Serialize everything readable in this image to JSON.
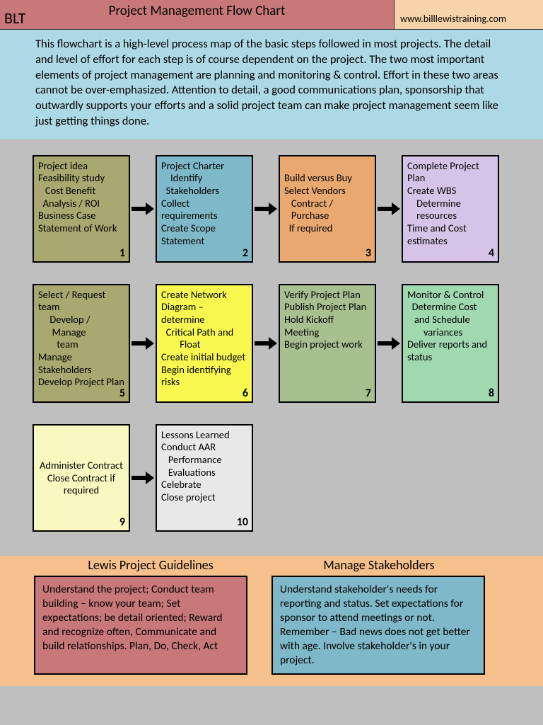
{
  "header": {
    "title": "Project Management Flow Chart",
    "brand": "BLT",
    "url": "www.billlewistraining.com",
    "title_bg": "#c87878",
    "url_bg": "#f8d2a8"
  },
  "intro": {
    "text": "This flowchart is a high-level process map of the basic steps followed in most projects. The detail and level of effort for each step is of course dependent on the project.  The two most important elements of project management are planning and monitoring & control.  Effort in these two areas cannot be over-emphasized.  Attention to detail, a good communications plan, sponsorship that outwardly supports your efforts and a solid project team can make project management seem like just getting things done.",
    "bg": "#add8e6"
  },
  "page_bg": "#bfbfbf",
  "boxes": [
    {
      "n": 1,
      "bg": "#a8a870",
      "text": "Project idea\nFeasibility study\n   Cost Benefit\n  Analysis / ROI\nBusiness Case\nStatement of Work"
    },
    {
      "n": 2,
      "bg": "#7fb8c8",
      "text": "Project Charter\n    Identify\n  Stakeholders\nCollect requirements\nCreate Scope Statement"
    },
    {
      "n": 3,
      "bg": "#e8a870",
      "text": "\nBuild versus Buy\nSelect Vendors\n   Contract /\n   Purchase\n  If required"
    },
    {
      "n": 4,
      "bg": "#d6c4e8",
      "text": "Complete Project Plan\nCreate WBS\n    Determine\n    resources\nTime and Cost estimates"
    },
    {
      "n": 5,
      "bg": "#a8a870",
      "text": "Select / Request team\n     Develop /\n      Manage\n        team\nManage Stakeholders\nDevelop Project Plan"
    },
    {
      "n": 6,
      "bg": "#f8f850",
      "text": "Create Network Diagram – determine\n  Critical Path and\n        Float\nCreate initial budget\nBegin identifying risks"
    },
    {
      "n": 7,
      "bg": "#a8c090",
      "text": "Verify Project Plan\nPublish Project Plan\nHold Kickoff Meeting\nBegin project work"
    },
    {
      "n": 8,
      "bg": "#a0d8b0",
      "text": "Monitor & Control\n  Determine Cost\n   and Schedule\n       variances\nDeliver reports and status"
    },
    {
      "n": 9,
      "bg": "#f8f8c0",
      "text": "Administer Contract\nClose Contract if required",
      "centered": true
    },
    {
      "n": 10,
      "bg": "#e8e8e8",
      "text": "Lessons Learned\nConduct AAR\n   Performance\n   Evaluations\nCelebrate\nClose project"
    }
  ],
  "footer": {
    "bg": "#f5c08c",
    "head1": "Lewis Project Guidelines",
    "head2": "Manage Stakeholders",
    "box1": {
      "bg": "#c87878",
      "text": "Understand the project; Conduct  team building – know your team; Set expectations; be detail oriented; Reward and recognize often, Communicate and build relationships.  Plan, Do, Check, Act"
    },
    "box2": {
      "bg": "#7fb8c8",
      "text": "Understand stakeholder's needs for reporting and status. Set expectations for sponsor  to attend meetings or not. Remember – Bad news does not get better with age.  Involve stakeholder's in your project."
    }
  }
}
